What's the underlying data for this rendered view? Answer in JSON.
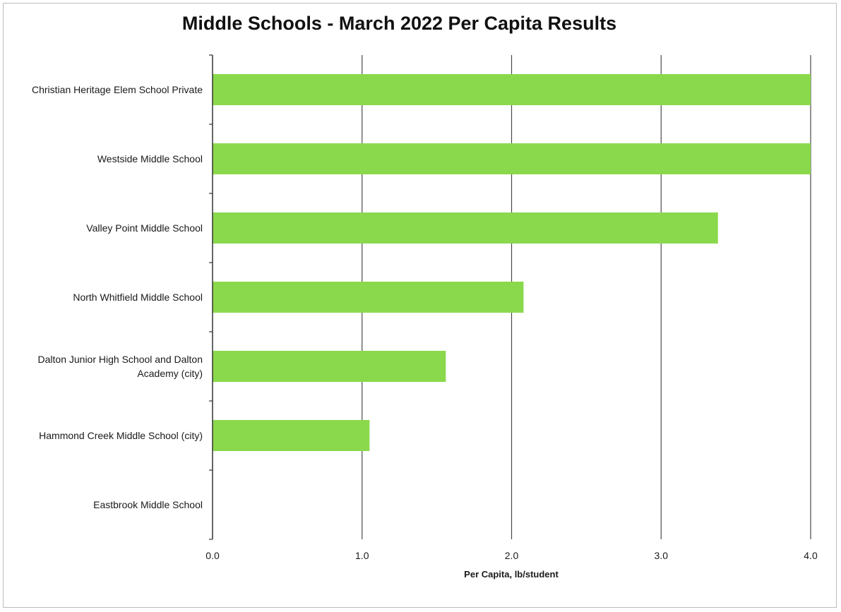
{
  "chart_data": {
    "type": "bar",
    "orientation": "horizontal",
    "title": "Middle Schools - March 2022 Per Capita Results",
    "xlabel": "Per Capita, lb/student",
    "ylabel": "",
    "xlim": [
      0,
      4
    ],
    "xticks": [
      "0.0",
      "1.0",
      "2.0",
      "3.0",
      "4.0"
    ],
    "grid": "vertical",
    "legend": "none",
    "bar_color": "#8ad94c",
    "categories": [
      [
        "Christian Heritage Elem School Private"
      ],
      [
        "Westside Middle School"
      ],
      [
        "Valley Point Middle School"
      ],
      [
        "North Whitfield Middle School"
      ],
      [
        "Dalton Junior High School and Dalton",
        "Academy (city)"
      ],
      [
        "Hammond Creek Middle School (city)"
      ],
      [
        "Eastbrook Middle School"
      ]
    ],
    "values": [
      4.0,
      4.0,
      3.38,
      2.08,
      1.56,
      1.05,
      0
    ]
  }
}
